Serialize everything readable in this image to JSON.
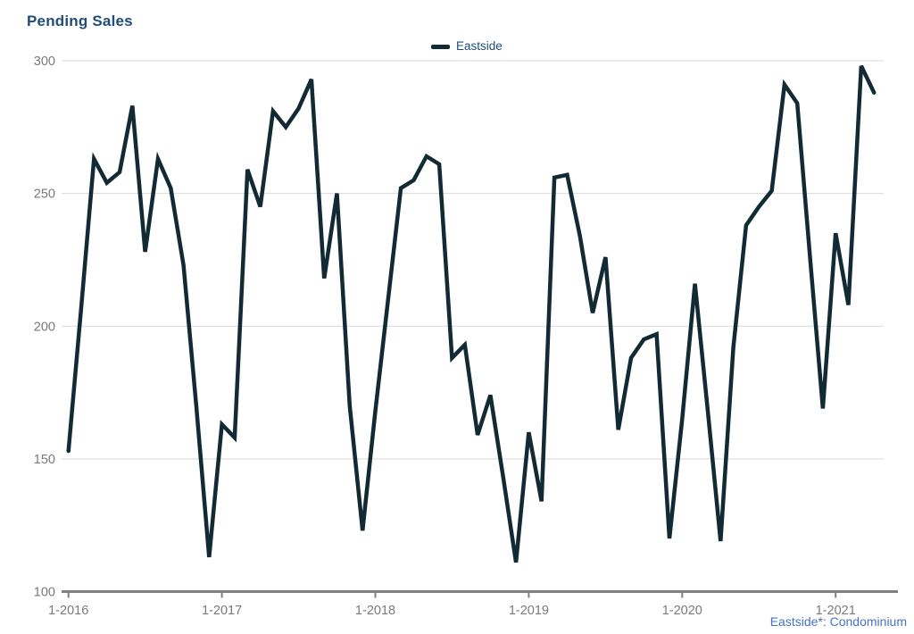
{
  "header": {
    "title": "Pending Sales"
  },
  "legend": {
    "series_label": "Eastside"
  },
  "footer": {
    "note": "Eastside*: Condominium"
  },
  "colors": {
    "title_text": "#1f4e79",
    "legend_text": "#1f4e79",
    "series_line": "#122a33",
    "gridline": "#d9d9d9",
    "axis": "#808080",
    "axis_label": "#7a7a7a",
    "footnote_text": "#4472c4",
    "background": "#ffffff"
  },
  "chart_data": {
    "type": "line",
    "title": "Pending Sales",
    "x_start": "1-2016",
    "x_interval": "month",
    "x_tick_labels": [
      "1-2016",
      "1-2017",
      "1-2018",
      "1-2019",
      "1-2020",
      "1-2021"
    ],
    "x_ticks_every_n_points": 12,
    "ylim": [
      100,
      300
    ],
    "yticks": [
      100,
      150,
      200,
      250,
      300
    ],
    "grid": "horizontal-only",
    "legend_position": "top-center",
    "series": [
      {
        "name": "Eastside",
        "values": [
          153,
          207,
          263,
          254,
          258,
          283,
          228,
          263,
          252,
          223,
          170,
          113,
          163,
          158,
          259,
          245,
          281,
          275,
          282,
          293,
          218,
          250,
          170,
          123,
          168,
          210,
          252,
          255,
          264,
          261,
          188,
          193,
          159,
          174,
          143,
          111,
          160,
          134,
          256,
          257,
          234,
          205,
          226,
          161,
          188,
          195,
          197,
          120,
          165,
          216,
          168,
          119,
          192,
          238,
          245,
          251,
          291,
          284,
          226,
          169,
          235,
          208,
          298,
          288
        ]
      }
    ]
  }
}
